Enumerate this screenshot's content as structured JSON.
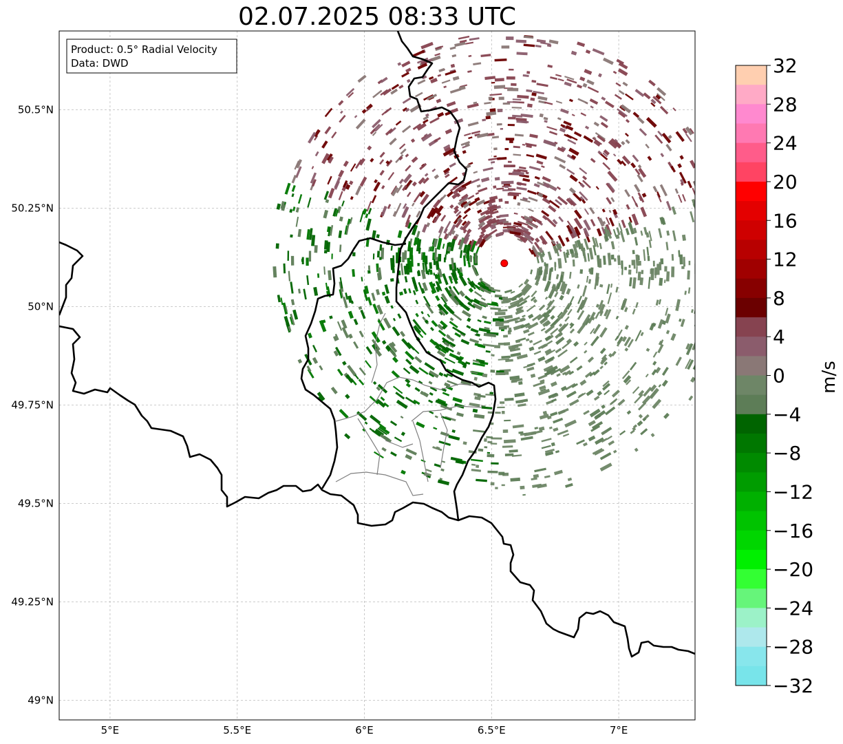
{
  "title": "02.07.2025 08:33 UTC",
  "info_box": {
    "line1": "Product: 0.5° Radial Velocity",
    "line2": "Data: DWD"
  },
  "map": {
    "lon_range": [
      4.8,
      7.3
    ],
    "lat_range": [
      48.95,
      50.7
    ],
    "x_ticks": [
      {
        "value": 5.0,
        "label": "5°E"
      },
      {
        "value": 5.5,
        "label": "5.5°E"
      },
      {
        "value": 6.0,
        "label": "6°E"
      },
      {
        "value": 6.5,
        "label": "6.5°E"
      },
      {
        "value": 7.0,
        "label": "7°E"
      }
    ],
    "y_ticks": [
      {
        "value": 50.5,
        "label": "50.5°N"
      },
      {
        "value": 50.25,
        "label": "50.25°N"
      },
      {
        "value": 50.0,
        "label": "50°N"
      },
      {
        "value": 49.75,
        "label": "49.75°N"
      },
      {
        "value": 49.5,
        "label": "49.5°N"
      },
      {
        "value": 49.25,
        "label": "49.25°N"
      },
      {
        "value": 49.0,
        "label": "49°N"
      }
    ],
    "radar_site": {
      "lon": 6.55,
      "lat": 50.11
    },
    "gridlines": true
  },
  "colorbar": {
    "label": "m/s",
    "ticks": [
      "32",
      "28",
      "24",
      "20",
      "16",
      "12",
      "8",
      "4",
      "0",
      "−4",
      "−8",
      "−12",
      "−16",
      "−20",
      "−24",
      "−28",
      "−32"
    ],
    "colors_top_to_bottom": [
      "#ffcfb0",
      "#ffaac6",
      "#ff89cf",
      "#ff79b2",
      "#ff5c8a",
      "#ff4463",
      "#ff0000",
      "#e40000",
      "#cf0000",
      "#b80000",
      "#a00000",
      "#870000",
      "#6b0000",
      "#864350",
      "#8b5c6c",
      "#8a7876",
      "#6e8667",
      "#5d7d57",
      "#006400",
      "#007700",
      "#008a00",
      "#009c00",
      "#00b000",
      "#00c300",
      "#00d600",
      "#00f000",
      "#33ff33",
      "#66f57a",
      "#9cf2c8",
      "#aee8ec",
      "#88e6ec",
      "#78e4ea"
    ]
  }
}
